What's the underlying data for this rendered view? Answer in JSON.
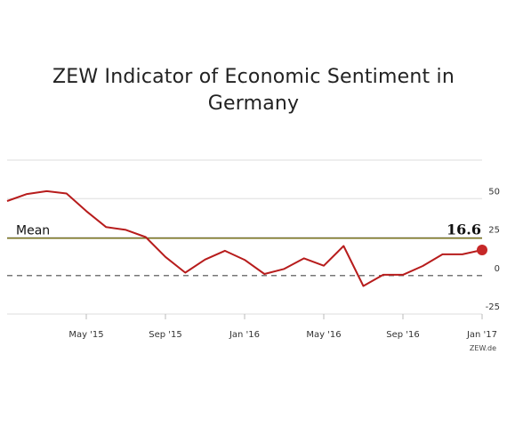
{
  "chart_data": {
    "type": "line",
    "title": "ZEW Indicator of Economic Sentiment in Germany",
    "title_lines": [
      "ZEW Indicator of Economic Sentiment in",
      "Germany"
    ],
    "xlabel": "",
    "ylabel": "",
    "x": [
      "Jan '15",
      "Feb '15",
      "Mar '15",
      "Apr '15",
      "May '15",
      "Jun '15",
      "Jul '15",
      "Aug '15",
      "Sep '15",
      "Oct '15",
      "Nov '15",
      "Dec '15",
      "Jan '16",
      "Feb '16",
      "Mar '16",
      "Apr '16",
      "May '16",
      "Jun '16",
      "Jul '16",
      "Aug '16",
      "Sep '16",
      "Oct '16",
      "Nov '16",
      "Dec '16",
      "Jan '17"
    ],
    "values": [
      48.4,
      53.0,
      54.8,
      53.3,
      41.9,
      31.5,
      29.7,
      25.0,
      12.1,
      1.9,
      10.4,
      16.1,
      10.2,
      1.0,
      4.3,
      11.2,
      6.4,
      19.2,
      -6.8,
      0.5,
      0.5,
      6.2,
      13.8,
      13.8,
      16.6
    ],
    "y_ticks": [
      50,
      25,
      0,
      -25
    ],
    "y_tick_labels": [
      "50",
      "25",
      "0",
      "-25"
    ],
    "ylim": [
      -25,
      75
    ],
    "x_tick_labels": [
      "May '15",
      "Sep '15",
      "Jan '16",
      "May '16",
      "Sep '16",
      "Jan '17"
    ],
    "x_tick_indices": [
      4,
      8,
      12,
      16,
      20,
      24
    ],
    "mean": {
      "label": "Mean",
      "value": 24.3
    },
    "last_value_label": "16.6",
    "source": "ZEW.de",
    "grid": true,
    "colors": {
      "line": "#b71c1c",
      "marker": "#c62828",
      "mean": "#7a7320",
      "zero": "#777777",
      "grid": "#dddddd"
    }
  }
}
